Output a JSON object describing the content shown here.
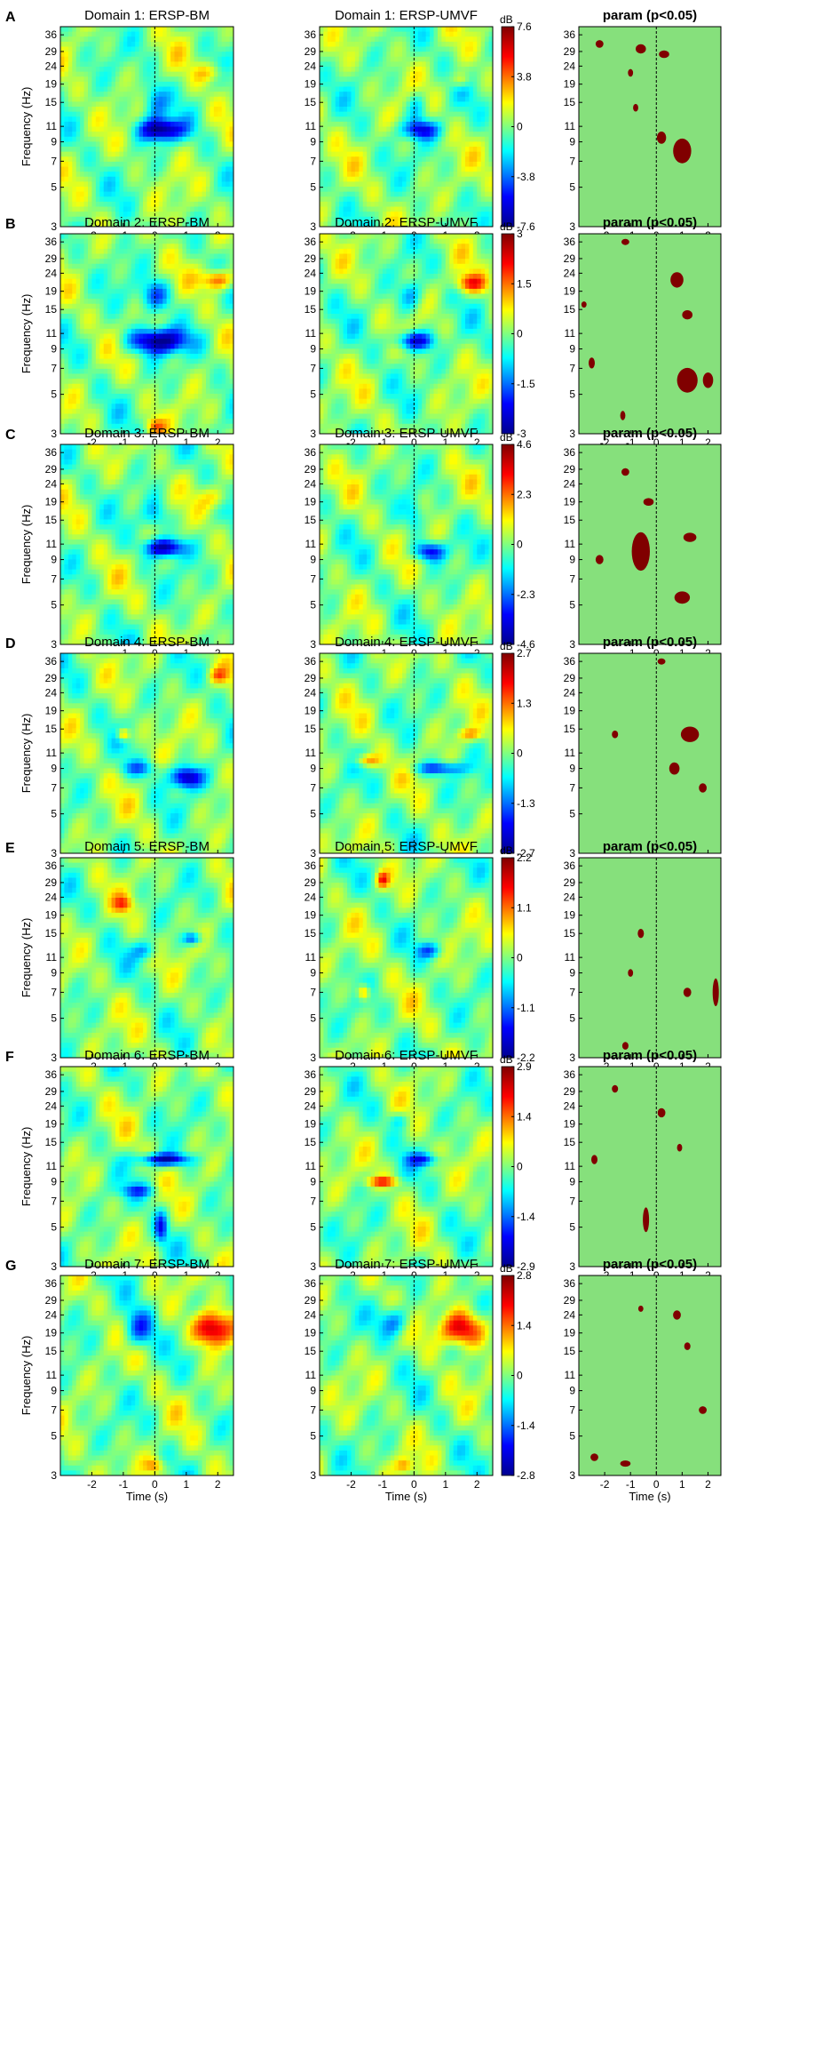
{
  "figure": {
    "description_labels": [
      "A",
      "B",
      "C",
      "D",
      "E",
      "F",
      "G"
    ]
  },
  "colors": {
    "stat_background": "#86e07c",
    "stat_significant": "#800000",
    "colormap": [
      "#00008f",
      "#0000ff",
      "#00ffff",
      "#ffff00",
      "#ff0000",
      "#800000"
    ]
  },
  "chart_data": [
    {
      "panel": "A",
      "type": "heatmap",
      "titles": [
        "Domain 1: ERSP-BM",
        "Domain 1: ERSP-UMVF",
        "param (p<0.05)"
      ],
      "xlabel": "Time (s)",
      "ylabel": "Frequency (Hz)",
      "xlim": [
        -3,
        2.5
      ],
      "xticks": [
        -2,
        -1,
        0,
        1,
        2
      ],
      "yticks": [
        3,
        5,
        7,
        9,
        11,
        15,
        19,
        24,
        29,
        36
      ],
      "ylim": [
        3,
        40
      ],
      "colorbar": {
        "unit": "dB",
        "ticks": [
          "7.6",
          "3.8",
          "0",
          "-3.8",
          "-7.6"
        ],
        "max": 7.6
      },
      "bm_blobs": [
        [
          0.2,
          10.5,
          0.7,
          0.14,
          -1.0
        ],
        [
          0.0,
          15,
          0.4,
          0.25,
          -0.45
        ],
        [
          1.8,
          22,
          0.5,
          0.12,
          0.3
        ]
      ],
      "umvf_blobs": [
        [
          0.2,
          10.5,
          0.6,
          0.12,
          -0.7
        ],
        [
          1.5,
          20,
          0.3,
          0.1,
          0.35
        ],
        [
          0.1,
          14,
          0.3,
          0.2,
          -0.3
        ]
      ],
      "sig_blobs": [
        [
          1.0,
          8,
          0.35,
          0.16
        ],
        [
          0.2,
          9.5,
          0.18,
          0.08
        ],
        [
          -0.6,
          30,
          0.2,
          0.06
        ],
        [
          0.3,
          28,
          0.2,
          0.05
        ],
        [
          -2.2,
          32,
          0.15,
          0.05
        ],
        [
          -1.0,
          22,
          0.1,
          0.05
        ],
        [
          -0.8,
          14,
          0.1,
          0.05
        ]
      ]
    },
    {
      "panel": "B",
      "type": "heatmap",
      "titles": [
        "Domain 2: ERSP-BM",
        "Domain 2: ERSP-UMVF",
        "param (p<0.05)"
      ],
      "xlabel": "Time (s)",
      "ylabel": "Frequency (Hz)",
      "xlim": [
        -3,
        2.5
      ],
      "xticks": [
        -2,
        -1,
        0,
        1,
        2
      ],
      "yticks": [
        3,
        5,
        7,
        9,
        11,
        15,
        19,
        24,
        29,
        36
      ],
      "ylim": [
        3,
        40
      ],
      "colorbar": {
        "unit": "dB",
        "ticks": [
          "3",
          "1.5",
          "0",
          "-1.5",
          "-3"
        ],
        "max": 3
      },
      "bm_blobs": [
        [
          0.1,
          10,
          0.9,
          0.16,
          -1.0
        ],
        [
          0.0,
          18,
          0.5,
          0.2,
          -0.55
        ],
        [
          2.0,
          22,
          0.5,
          0.13,
          0.7
        ],
        [
          0.0,
          3.3,
          0.3,
          0.1,
          0.4
        ]
      ],
      "umvf_blobs": [
        [
          0.0,
          10,
          0.6,
          0.12,
          -0.8
        ],
        [
          1.8,
          21,
          0.5,
          0.12,
          0.6
        ],
        [
          -0.1,
          18,
          0.4,
          0.2,
          -0.4
        ]
      ],
      "sig_blobs": [
        [
          1.2,
          6,
          0.4,
          0.16
        ],
        [
          2.0,
          6,
          0.2,
          0.1
        ],
        [
          -2.5,
          7.5,
          0.12,
          0.07
        ],
        [
          0.8,
          22,
          0.25,
          0.1
        ],
        [
          1.2,
          14,
          0.2,
          0.06
        ],
        [
          -1.3,
          3.8,
          0.1,
          0.06
        ],
        [
          -1.2,
          36,
          0.15,
          0.04
        ],
        [
          -2.8,
          16,
          0.1,
          0.04
        ]
      ]
    },
    {
      "panel": "C",
      "type": "heatmap",
      "titles": [
        "Domain 3: ERSP-BM",
        "Domain 3: ERSP-UMVF",
        "param (p<0.05)"
      ],
      "xlabel": "Time (s)",
      "ylabel": "Frequency (Hz)",
      "xlim": [
        -3,
        2.5
      ],
      "xticks": [
        -1,
        0,
        1,
        2
      ],
      "yticks": [
        3,
        5,
        7,
        9,
        11,
        15,
        19,
        24,
        29,
        36
      ],
      "ylim": [
        3,
        40
      ],
      "colorbar": {
        "unit": "dB",
        "ticks": [
          "4.6",
          "2.3",
          "0",
          "-2.3",
          "-4.6"
        ],
        "max": 4.6
      },
      "bm_blobs": [
        [
          0.3,
          10.5,
          0.6,
          0.12,
          -1.0
        ],
        [
          0.0,
          16,
          0.4,
          0.2,
          -0.4
        ],
        [
          2.0,
          20,
          0.5,
          0.15,
          0.35
        ]
      ],
      "umvf_blobs": [
        [
          0.5,
          10,
          0.5,
          0.12,
          -0.75
        ],
        [
          0.0,
          16,
          0.3,
          0.2,
          -0.3
        ]
      ],
      "sig_blobs": [
        [
          -0.6,
          10,
          0.35,
          0.25
        ],
        [
          1.0,
          5.5,
          0.3,
          0.08
        ],
        [
          1.3,
          12,
          0.25,
          0.06
        ],
        [
          -1.2,
          28,
          0.15,
          0.05
        ],
        [
          -0.3,
          19,
          0.2,
          0.05
        ],
        [
          -2.2,
          9,
          0.15,
          0.06
        ]
      ]
    },
    {
      "panel": "D",
      "type": "heatmap",
      "titles": [
        "Domain 4: ERSP-BM",
        "Domain 4: ERSP-UMVF",
        "param (p<0.05)"
      ],
      "xlabel": "Time (s)",
      "ylabel": "Frequency (Hz)",
      "xlim": [
        -3,
        2.5
      ],
      "xticks": [
        -2,
        -1,
        0,
        1,
        2
      ],
      "yticks": [
        3,
        5,
        7,
        9,
        11,
        15,
        19,
        24,
        29,
        36
      ],
      "ylim": [
        3,
        40
      ],
      "colorbar": {
        "unit": "dB",
        "ticks": [
          "2.7",
          "1.3",
          "0",
          "-1.3",
          "-2.7"
        ],
        "max": 2.7
      },
      "bm_blobs": [
        [
          1.0,
          8,
          0.5,
          0.14,
          -0.9
        ],
        [
          -1.0,
          14,
          0.2,
          0.08,
          0.6
        ],
        [
          -0.5,
          9,
          0.6,
          0.1,
          -0.4
        ],
        [
          2.0,
          30,
          0.3,
          0.1,
          0.4
        ]
      ],
      "umvf_blobs": [
        [
          0.8,
          9,
          0.8,
          0.08,
          -0.6
        ],
        [
          -1.5,
          10,
          0.4,
          0.08,
          0.5
        ],
        [
          1.8,
          14,
          0.4,
          0.08,
          0.4
        ]
      ],
      "sig_blobs": [
        [
          1.3,
          14,
          0.35,
          0.1
        ],
        [
          0.7,
          9,
          0.2,
          0.08
        ],
        [
          1.8,
          7,
          0.15,
          0.06
        ],
        [
          -1.6,
          14,
          0.12,
          0.05
        ],
        [
          0.2,
          36,
          0.15,
          0.04
        ]
      ]
    },
    {
      "panel": "E",
      "type": "heatmap",
      "titles": [
        "Domain 5: ERSP-BM",
        "Domain 5: ERSP-UMVF",
        "param (p<0.05)"
      ],
      "xlabel": "Time (s)",
      "ylabel": "Frequency (Hz)",
      "xlim": [
        -3,
        2.5
      ],
      "xticks": [
        -2,
        -1,
        0,
        1,
        2
      ],
      "yticks": [
        3,
        5,
        7,
        9,
        11,
        15,
        19,
        24,
        29,
        36
      ],
      "ylim": [
        3,
        40
      ],
      "colorbar": {
        "unit": "dB",
        "ticks": [
          "2.2",
          "1.1",
          "0",
          "-1.1",
          "-2.2"
        ],
        "max": 2.2
      },
      "bm_blobs": [
        [
          1.2,
          14,
          0.3,
          0.08,
          -0.6
        ],
        [
          -0.3,
          12,
          0.4,
          0.12,
          -0.4
        ],
        [
          -1.0,
          22,
          0.3,
          0.1,
          0.4
        ]
      ],
      "umvf_blobs": [
        [
          -1.6,
          7,
          0.2,
          0.1,
          0.6
        ],
        [
          -1.0,
          30,
          0.2,
          0.1,
          0.6
        ],
        [
          0.5,
          12,
          0.4,
          0.1,
          -0.5
        ]
      ],
      "sig_blobs": [
        [
          2.3,
          7,
          0.12,
          0.18
        ],
        [
          -1.2,
          3.5,
          0.12,
          0.05
        ],
        [
          1.2,
          7,
          0.15,
          0.06
        ],
        [
          -0.6,
          15,
          0.12,
          0.06
        ],
        [
          -1.0,
          9,
          0.1,
          0.05
        ]
      ]
    },
    {
      "panel": "F",
      "type": "heatmap",
      "titles": [
        "Domain 6: ERSP-BM",
        "Domain 6: ERSP-UMVF",
        "param (p<0.05)"
      ],
      "xlabel": "Time (s)",
      "ylabel": "Frequency (Hz)",
      "xlim": [
        -3,
        2.5
      ],
      "xticks": [
        -2,
        -1,
        0,
        1,
        2
      ],
      "yticks": [
        3,
        5,
        7,
        9,
        11,
        15,
        19,
        24,
        29,
        36
      ],
      "ylim": [
        3,
        40
      ],
      "colorbar": {
        "unit": "dB",
        "ticks": [
          "2.9",
          "1.4",
          "0",
          "-1.4",
          "-2.9"
        ],
        "max": 2.9
      },
      "bm_blobs": [
        [
          0.3,
          12,
          0.8,
          0.08,
          -0.9
        ],
        [
          0.2,
          5,
          0.2,
          0.2,
          -0.6
        ],
        [
          -0.5,
          8,
          0.6,
          0.08,
          -0.4
        ]
      ],
      "umvf_blobs": [
        [
          -1.0,
          9,
          0.5,
          0.06,
          0.6
        ],
        [
          0.3,
          12,
          0.5,
          0.08,
          -0.55
        ],
        [
          -0.5,
          20,
          0.3,
          0.1,
          -0.3
        ]
      ],
      "sig_blobs": [
        [
          -0.4,
          5.5,
          0.12,
          0.16
        ],
        [
          -2.4,
          12,
          0.12,
          0.06
        ],
        [
          0.2,
          22,
          0.15,
          0.06
        ],
        [
          -1.6,
          30,
          0.12,
          0.05
        ],
        [
          0.9,
          14,
          0.1,
          0.05
        ]
      ]
    },
    {
      "panel": "G",
      "type": "heatmap",
      "titles": [
        "Domain 7: ERSP-BM",
        "Domain 7: ERSP-UMVF",
        "param (p<0.05)"
      ],
      "xlabel": "Time (s)",
      "ylabel": "Frequency (Hz)",
      "xlim": [
        -3,
        2.5
      ],
      "xticks": [
        -2,
        -1,
        0,
        1,
        2
      ],
      "yticks": [
        3,
        5,
        7,
        9,
        11,
        15,
        19,
        24,
        29,
        36
      ],
      "ylim": [
        3,
        40
      ],
      "colorbar": {
        "unit": "dB",
        "ticks": [
          "2.8",
          "1.4",
          "0",
          "-1.4",
          "-2.8"
        ],
        "max": 2.8
      },
      "bm_blobs": [
        [
          1.8,
          20,
          0.6,
          0.22,
          0.95
        ],
        [
          -0.5,
          20,
          0.5,
          0.25,
          -0.6
        ],
        [
          0.0,
          3.4,
          0.3,
          0.1,
          0.4
        ]
      ],
      "umvf_blobs": [
        [
          1.5,
          20,
          0.7,
          0.22,
          0.9
        ],
        [
          -0.6,
          22,
          0.5,
          0.2,
          -0.55
        ],
        [
          -0.3,
          3.4,
          0.3,
          0.1,
          0.4
        ]
      ],
      "sig_blobs": [
        [
          0.8,
          24,
          0.15,
          0.06
        ],
        [
          1.8,
          7,
          0.15,
          0.05
        ],
        [
          -1.2,
          3.5,
          0.2,
          0.04
        ],
        [
          -2.4,
          3.8,
          0.15,
          0.05
        ],
        [
          1.2,
          16,
          0.12,
          0.05
        ],
        [
          -0.6,
          26,
          0.1,
          0.04
        ]
      ]
    }
  ]
}
